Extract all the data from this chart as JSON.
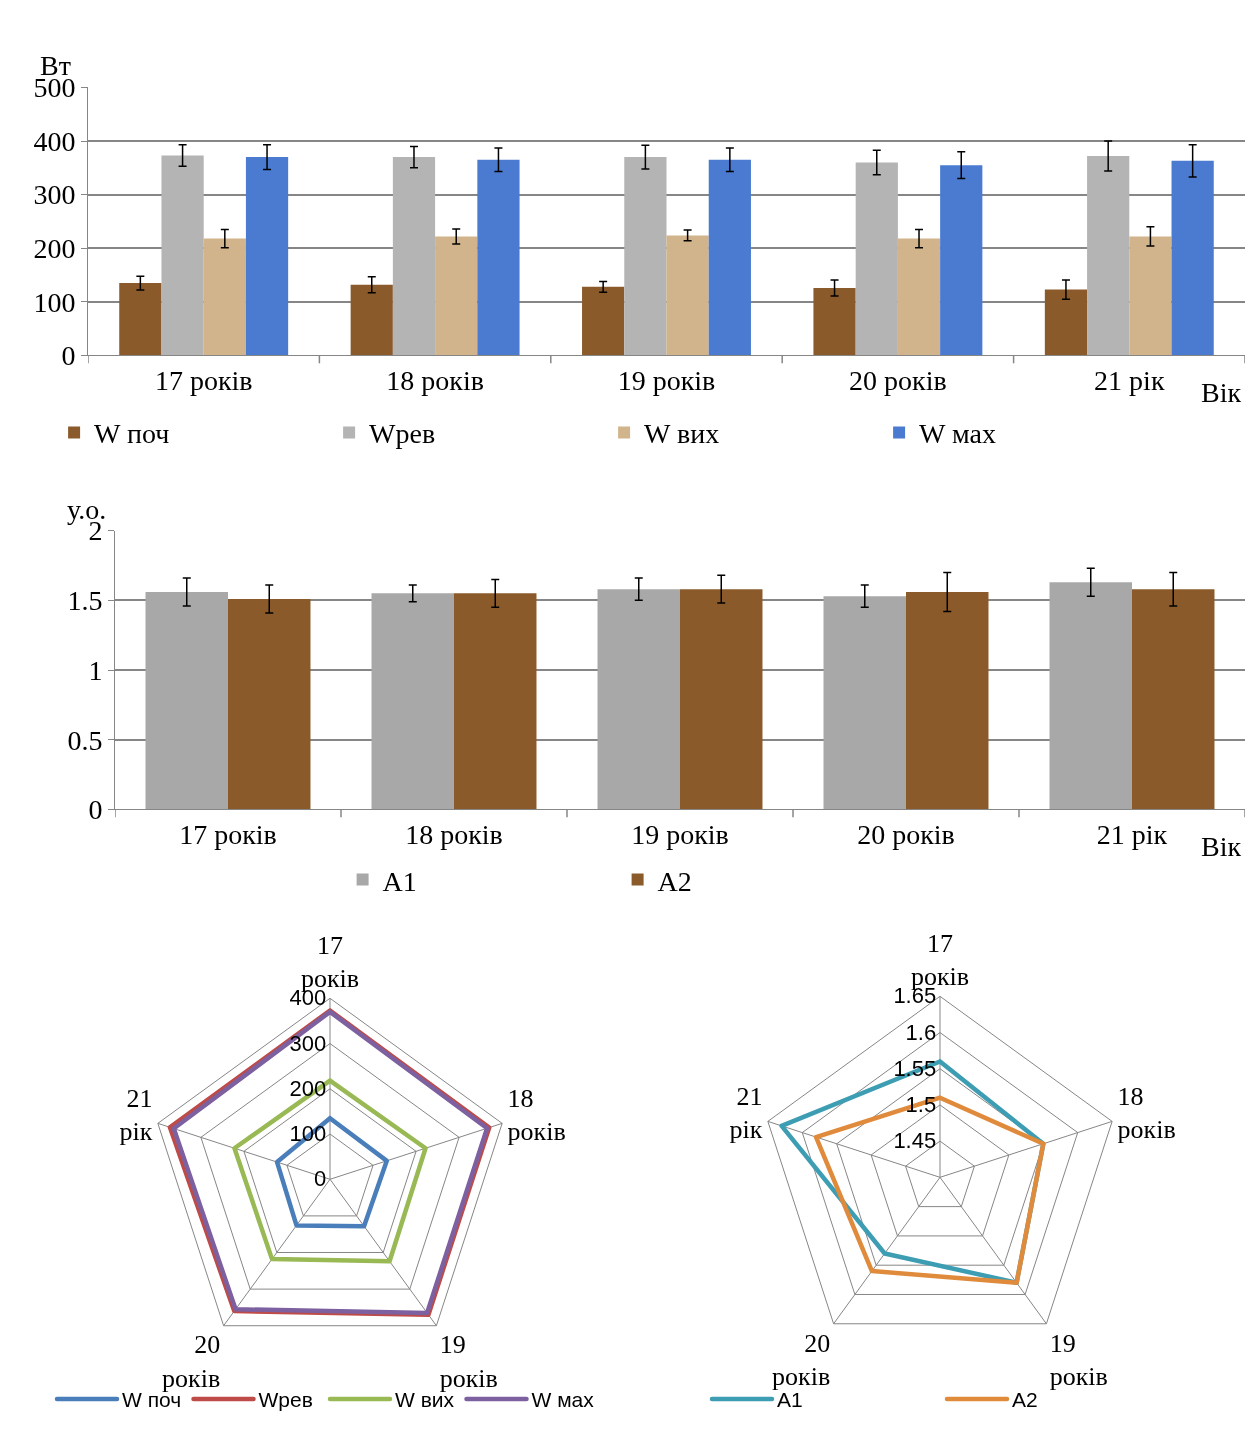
{
  "chart_data": [
    {
      "type": "bar",
      "ylabel": "Вт",
      "xlabel": "Вік",
      "categories": [
        "17 років",
        "18 років",
        "19 років",
        "20 років",
        "21 рік"
      ],
      "ylim": [
        0,
        500
      ],
      "yticks": [
        0,
        100,
        200,
        300,
        400,
        500
      ],
      "grid": "y",
      "legend": "bottom",
      "series": [
        {
          "name": "W поч",
          "color": "#8b5a2b",
          "values": [
            135,
            132,
            128,
            126,
            123
          ],
          "errors": [
            13,
            15,
            10,
            15,
            18
          ]
        },
        {
          "name": "Wрев",
          "color": "#b4b4b4",
          "values": [
            373,
            370,
            370,
            360,
            372
          ],
          "errors": [
            20,
            20,
            22,
            23,
            28
          ]
        },
        {
          "name": "W вих",
          "color": "#d2b48c",
          "values": [
            218,
            222,
            224,
            218,
            222
          ],
          "errors": [
            17,
            14,
            10,
            17,
            18
          ]
        },
        {
          "name": "W мах",
          "color": "#4a7bd0",
          "values": [
            370,
            365,
            365,
            355,
            363
          ],
          "errors": [
            23,
            22,
            22,
            25,
            30
          ]
        }
      ]
    },
    {
      "type": "bar",
      "ylabel": "у.о.",
      "xlabel": "Вік",
      "categories": [
        "17 років",
        "18 років",
        "19 років",
        "20 років",
        "21 рік"
      ],
      "ylim": [
        0,
        2
      ],
      "yticks": [
        0,
        0.5,
        1,
        1.5,
        2
      ],
      "grid": "y",
      "legend": "bottom",
      "series": [
        {
          "name": "A1",
          "color": "#a8a8a8",
          "values": [
            1.56,
            1.55,
            1.58,
            1.53,
            1.63
          ],
          "errors": [
            0.1,
            0.06,
            0.08,
            0.08,
            0.1
          ]
        },
        {
          "name": "A2",
          "color": "#8b5a2b",
          "values": [
            1.51,
            1.55,
            1.58,
            1.56,
            1.58
          ],
          "errors": [
            0.1,
            0.1,
            0.1,
            0.14,
            0.12
          ]
        }
      ]
    },
    {
      "type": "radar",
      "categories": [
        "17 років",
        "18 років",
        "19 років",
        "20 років",
        "21 рік"
      ],
      "ylim": [
        0,
        400
      ],
      "yticks": [
        0,
        100,
        200,
        300,
        400
      ],
      "grid": true,
      "legend": "bottom",
      "marker": "none",
      "series": [
        {
          "name": "W поч",
          "color": "#4a7ebb",
          "values": [
            135,
            132,
            128,
            126,
            123
          ]
        },
        {
          "name": "Wрев",
          "color": "#be4b48",
          "values": [
            373,
            370,
            370,
            360,
            372
          ]
        },
        {
          "name": "W вих",
          "color": "#98b954",
          "values": [
            218,
            222,
            224,
            218,
            222
          ]
        },
        {
          "name": "W мах",
          "color": "#7d60a0",
          "values": [
            370,
            365,
            365,
            355,
            363
          ]
        }
      ]
    },
    {
      "type": "radar",
      "categories": [
        "17 років",
        "18 років",
        "19 років",
        "20 років",
        "21 рік"
      ],
      "ylim": [
        1.4,
        1.65
      ],
      "yticks": [
        1.45,
        1.5,
        1.55,
        1.6,
        1.65
      ],
      "grid": true,
      "legend": "bottom",
      "marker": "none",
      "series": [
        {
          "name": "A1",
          "color": "#3d9db3",
          "values": [
            1.56,
            1.55,
            1.58,
            1.53,
            1.63
          ]
        },
        {
          "name": "A2",
          "color": "#e08a3c",
          "values": [
            1.51,
            1.55,
            1.58,
            1.56,
            1.58
          ]
        }
      ]
    }
  ]
}
